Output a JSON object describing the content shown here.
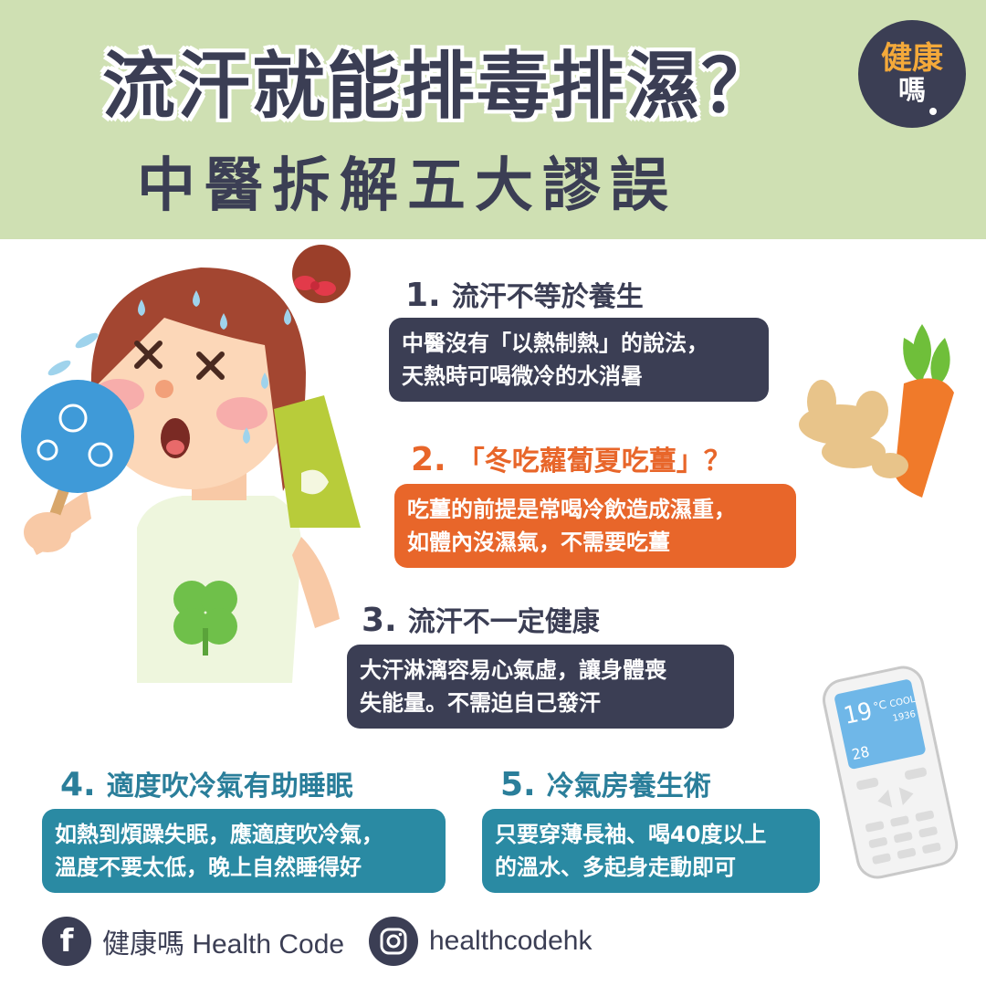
{
  "header": {
    "title": "流汗就能排毒排濕？",
    "subtitle": "中醫拆解五大謬誤"
  },
  "logo": {
    "line1": "健康",
    "line2": "嗎"
  },
  "items": [
    {
      "num": "1.",
      "title": "流汗不等於養生",
      "body_line1": "中醫沒有「以熱制熱」的說法，",
      "body_line2": "天熱時可喝微冷的水消暑"
    },
    {
      "num": "2.",
      "title": "「冬吃蘿蔔夏吃薑」？",
      "body_line1": "吃薑的前提是常喝冷飲造成濕重，",
      "body_line2": "如體內沒濕氣，不需要吃薑"
    },
    {
      "num": "3.",
      "title": "流汗不一定健康",
      "body_line1": "大汗淋漓容易心氣虛，讓身體喪",
      "body_line2": "失能量。不需迫自己發汗"
    },
    {
      "num": "4.",
      "title": "適度吹冷氣有助睡眠",
      "body_line1": "如熱到煩躁失眠，應適度吹冷氣，",
      "body_line2": "溫度不要太低，晚上自然睡得好"
    },
    {
      "num": "5.",
      "title": "冷氣房養生術",
      "body_line1": "只要穿薄長袖、喝40度以上",
      "body_line2": "的溫水、多起身走動即可"
    }
  ],
  "remote": {
    "temp": "19",
    "unit": "°C",
    "code": "COOL",
    "small": "1936",
    "lower": "28"
  },
  "footer": {
    "facebook_icon": "f",
    "facebook_text": "健康嗎 Health Code",
    "instagram_text": "healthcodehk"
  },
  "colors": {
    "header_bg": "#cfe0b3",
    "navy": "#3b3e54",
    "orange": "#e8662a",
    "teal": "#2a8aa3"
  }
}
